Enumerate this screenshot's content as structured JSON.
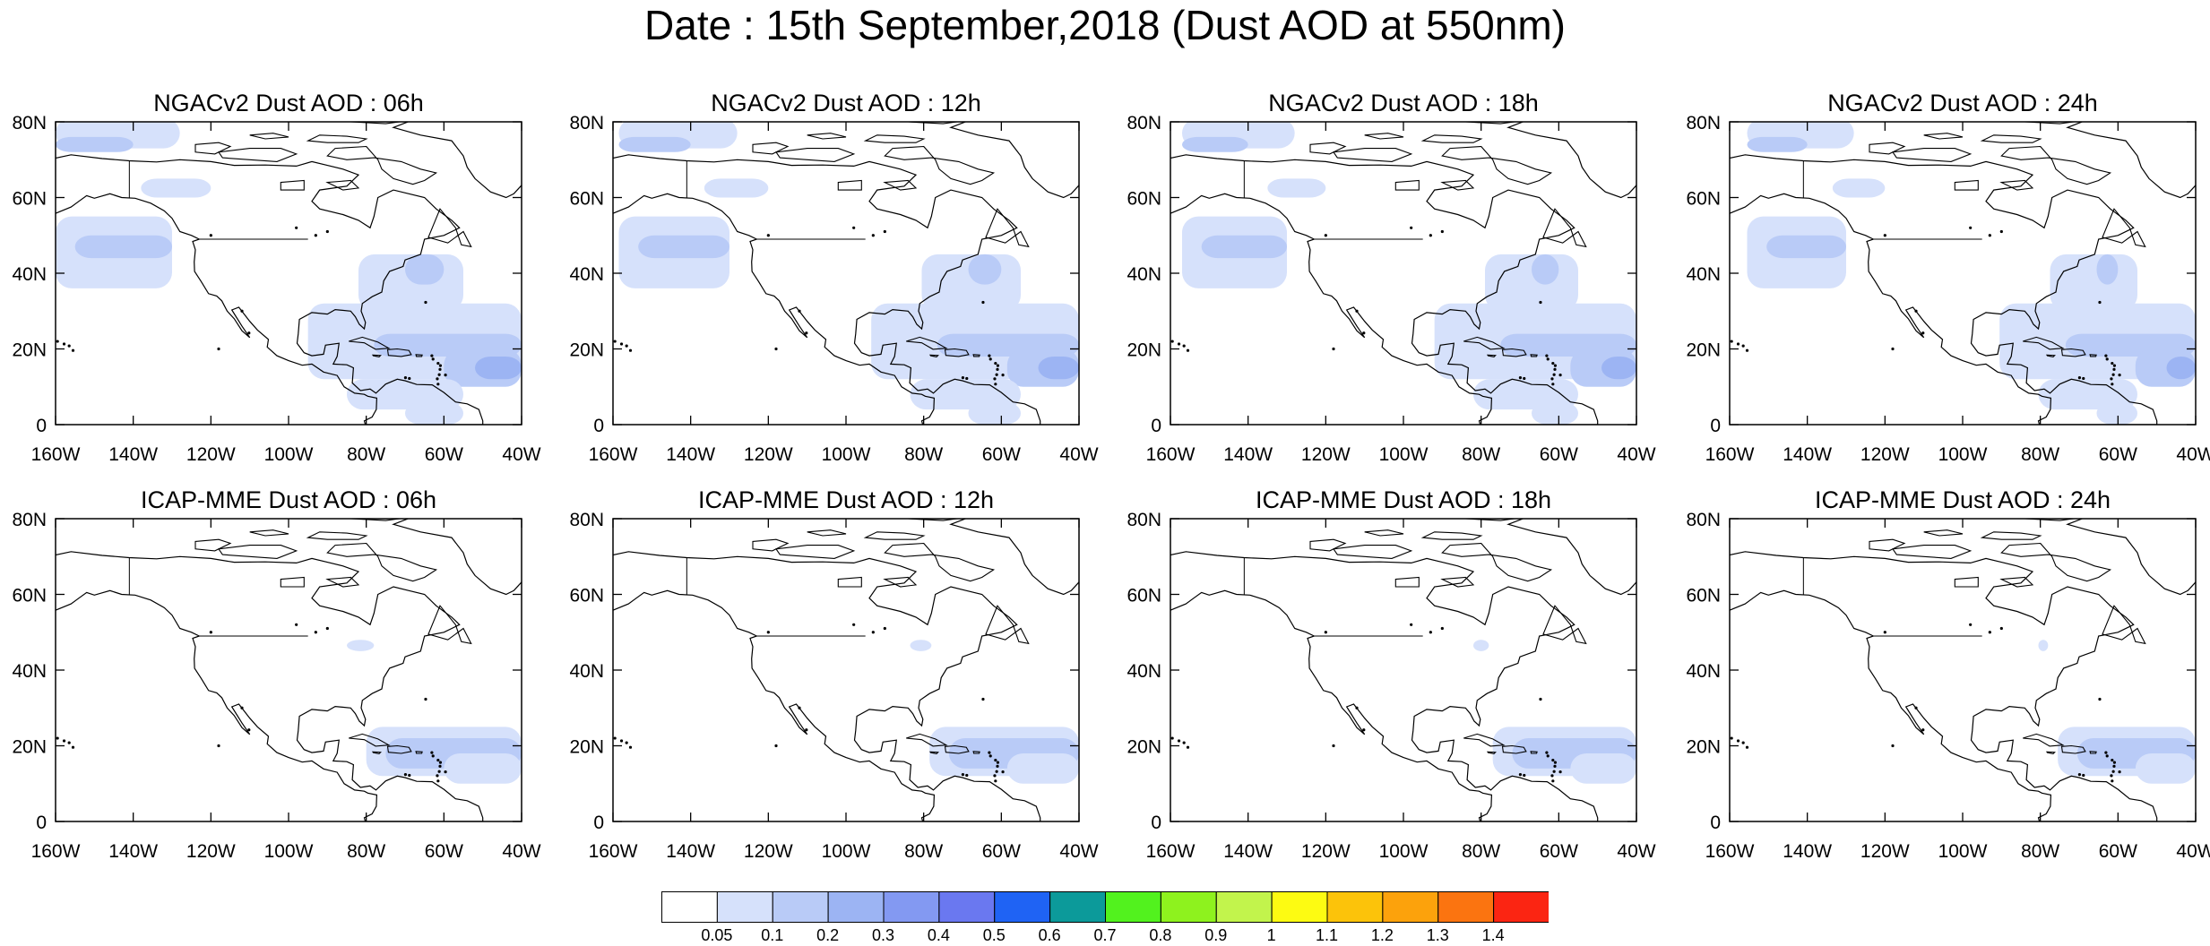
{
  "title": "Date : 15th September,2018 (Dust AOD at 550nm)",
  "axes": {
    "x_ticks": [
      "160W",
      "140W",
      "120W",
      "100W",
      "80W",
      "60W",
      "40W"
    ],
    "y_ticks": [
      "80N",
      "60N",
      "40N",
      "20N",
      "0"
    ],
    "lon_range": [
      -160,
      -40
    ],
    "lat_range": [
      0,
      80
    ]
  },
  "panels": [
    {
      "title": "NGACv2 Dust AOD : 06h",
      "model": "NGACv2",
      "hour": 6
    },
    {
      "title": "NGACv2 Dust AOD : 12h",
      "model": "NGACv2",
      "hour": 12
    },
    {
      "title": "NGACv2 Dust AOD : 18h",
      "model": "NGACv2",
      "hour": 18
    },
    {
      "title": "NGACv2 Dust AOD : 24h",
      "model": "NGACv2",
      "hour": 24
    },
    {
      "title": "ICAP-MME Dust AOD : 06h",
      "model": "ICAP-MME",
      "hour": 6
    },
    {
      "title": "ICAP-MME Dust AOD : 12h",
      "model": "ICAP-MME",
      "hour": 12
    },
    {
      "title": "ICAP-MME Dust AOD : 18h",
      "model": "ICAP-MME",
      "hour": 18
    },
    {
      "title": "ICAP-MME Dust AOD : 24h",
      "model": "ICAP-MME",
      "hour": 24
    }
  ],
  "colorbar": {
    "labels": [
      "0.05",
      "0.1",
      "0.2",
      "0.3",
      "0.4",
      "0.5",
      "0.6",
      "0.7",
      "0.8",
      "0.9",
      "1",
      "1.1",
      "1.2",
      "1.3",
      "1.4"
    ],
    "colors": [
      "#ffffff",
      "#d6e1fb",
      "#b9cbf7",
      "#9cb4f3",
      "#8399f2",
      "#6a78f0",
      "#1f63f4",
      "#0c9a9a",
      "#52f21e",
      "#8ef21e",
      "#c2f44c",
      "#fdfb12",
      "#fcc30a",
      "#fca20c",
      "#fb7410",
      "#fb2512"
    ]
  },
  "dust_colors": {
    "light": "#d6e1fb",
    "mid": "#b9cbf7",
    "dark": "#9cb4f3"
  }
}
